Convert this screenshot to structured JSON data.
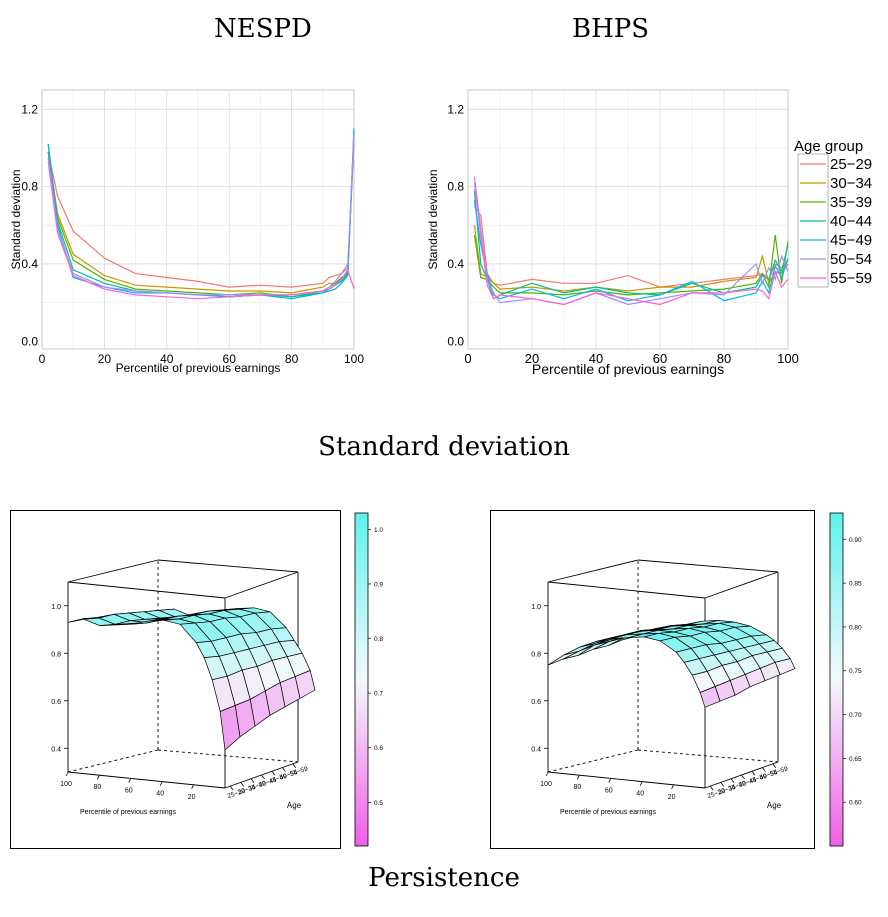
{
  "titles": {
    "nespd": "NESPD",
    "bhps": "BHPS",
    "sd_section": "Standard deviation",
    "persistence_section": "Persistence"
  },
  "colors": {
    "25-29": "#f8766d",
    "30-34": "#c49a00",
    "35-39": "#53b400",
    "40-44": "#00c094",
    "45-49": "#00b6eb",
    "50-54": "#a58aff",
    "55-59": "#fb61d7",
    "surface_high": "#5ff2ee",
    "surface_mid": "#f3f9fb",
    "surface_low": "#f15ee9"
  },
  "chart_data": [
    {
      "id": "nespd_sd",
      "type": "line",
      "title": "",
      "xlabel": "Percentile of previous earnings",
      "ylabel": "Standard deviation",
      "xlim": [
        0,
        100
      ],
      "ylim": [
        -0.04,
        1.3
      ],
      "xticks": [
        0,
        20,
        40,
        60,
        80,
        100
      ],
      "yticks": [
        0.0,
        0.4,
        0.8,
        1.2
      ],
      "ytick_labels": [
        "0.0",
        "0.4",
        "0.8",
        "1.2"
      ],
      "xtick_labels": [
        "0",
        "20",
        "40",
        "60",
        "80",
        "100"
      ],
      "grid": true,
      "x": [
        2,
        5,
        10,
        20,
        30,
        40,
        50,
        60,
        70,
        80,
        90,
        92,
        94,
        96,
        98,
        100
      ],
      "series": [
        {
          "key": "25-29",
          "values": [
            0.98,
            0.75,
            0.57,
            0.43,
            0.35,
            0.33,
            0.31,
            0.28,
            0.29,
            0.28,
            0.3,
            0.33,
            0.34,
            0.35,
            0.38,
            1.02
          ]
        },
        {
          "key": "30-34",
          "values": [
            0.98,
            0.66,
            0.45,
            0.34,
            0.29,
            0.28,
            0.27,
            0.26,
            0.26,
            0.25,
            0.28,
            0.3,
            0.3,
            0.32,
            0.36,
            1.06
          ]
        },
        {
          "key": "35-39",
          "values": [
            0.98,
            0.64,
            0.42,
            0.32,
            0.27,
            0.26,
            0.25,
            0.24,
            0.25,
            0.23,
            0.26,
            0.28,
            0.3,
            0.33,
            0.35,
            1.08
          ]
        },
        {
          "key": "40-44",
          "values": [
            1.02,
            0.62,
            0.37,
            0.3,
            0.26,
            0.25,
            0.24,
            0.23,
            0.24,
            0.22,
            0.25,
            0.27,
            0.29,
            0.31,
            0.35,
            1.1
          ]
        },
        {
          "key": "45-49",
          "values": [
            1.02,
            0.6,
            0.33,
            0.28,
            0.25,
            0.25,
            0.24,
            0.23,
            0.24,
            0.23,
            0.25,
            0.26,
            0.27,
            0.3,
            0.34,
            1.1
          ]
        },
        {
          "key": "50-54",
          "values": [
            0.95,
            0.58,
            0.35,
            0.28,
            0.26,
            0.25,
            0.24,
            0.24,
            0.24,
            0.24,
            0.26,
            0.28,
            0.31,
            0.35,
            0.4,
            1.07
          ]
        },
        {
          "key": "55-59",
          "values": [
            0.93,
            0.56,
            0.34,
            0.27,
            0.24,
            0.23,
            0.22,
            0.23,
            0.24,
            0.24,
            0.26,
            0.27,
            0.29,
            0.32,
            0.37,
            0.27
          ]
        }
      ]
    },
    {
      "id": "bhps_sd",
      "type": "line",
      "title": "",
      "xlabel": "Percentile of previous earnings",
      "ylabel": "Standard deviation",
      "xlim": [
        0,
        100
      ],
      "ylim": [
        -0.04,
        1.3
      ],
      "xticks": [
        0,
        20,
        40,
        60,
        80,
        100
      ],
      "yticks": [
        0.0,
        0.4,
        0.8,
        1.2
      ],
      "ytick_labels": [
        "0.0",
        "0.4",
        "0.8",
        "1.2"
      ],
      "xtick_labels": [
        "0",
        "20",
        "40",
        "60",
        "80",
        "100"
      ],
      "grid": true,
      "legend": {
        "title": "Age group",
        "position": "right",
        "entries": [
          "25−29",
          "30−34",
          "35−39",
          "40−44",
          "45−49",
          "50−54",
          "55−59"
        ]
      },
      "x": [
        2,
        4,
        6,
        8,
        10,
        20,
        30,
        40,
        50,
        60,
        70,
        80,
        90,
        92,
        94,
        96,
        98,
        100
      ],
      "series": [
        {
          "key": "25-29",
          "values": [
            0.7,
            0.65,
            0.35,
            0.3,
            0.29,
            0.32,
            0.3,
            0.3,
            0.34,
            0.28,
            0.3,
            0.32,
            0.34,
            0.35,
            0.32,
            0.4,
            0.38,
            0.42
          ]
        },
        {
          "key": "30-34",
          "values": [
            0.6,
            0.35,
            0.33,
            0.3,
            0.27,
            0.28,
            0.26,
            0.28,
            0.26,
            0.28,
            0.28,
            0.31,
            0.33,
            0.44,
            0.3,
            0.36,
            0.35,
            0.4
          ]
        },
        {
          "key": "35-39",
          "values": [
            0.55,
            0.33,
            0.32,
            0.28,
            0.25,
            0.25,
            0.24,
            0.26,
            0.24,
            0.25,
            0.26,
            0.27,
            0.3,
            0.35,
            0.28,
            0.55,
            0.3,
            0.52
          ]
        },
        {
          "key": "40-44",
          "values": [
            0.78,
            0.4,
            0.32,
            0.22,
            0.24,
            0.3,
            0.25,
            0.28,
            0.25,
            0.24,
            0.3,
            0.25,
            0.28,
            0.34,
            0.32,
            0.42,
            0.36,
            0.5
          ]
        },
        {
          "key": "45-49",
          "values": [
            0.73,
            0.5,
            0.35,
            0.24,
            0.22,
            0.27,
            0.22,
            0.27,
            0.21,
            0.24,
            0.31,
            0.21,
            0.25,
            0.31,
            0.25,
            0.39,
            0.33,
            0.43
          ]
        },
        {
          "key": "50-54",
          "values": [
            0.85,
            0.58,
            0.32,
            0.25,
            0.2,
            0.22,
            0.19,
            0.25,
            0.19,
            0.22,
            0.25,
            0.24,
            0.4,
            0.3,
            0.38,
            0.32,
            0.44,
            0.36
          ]
        },
        {
          "key": "55-59",
          "values": [
            0.82,
            0.55,
            0.29,
            0.22,
            0.24,
            0.22,
            0.19,
            0.25,
            0.22,
            0.19,
            0.25,
            0.25,
            0.27,
            0.26,
            0.22,
            0.36,
            0.28,
            0.32
          ]
        }
      ]
    },
    {
      "id": "nespd_persistence",
      "type": "surface",
      "title": "",
      "xlabel": "Percentile of previous earnings",
      "ylabel": "Age",
      "xtick_labels": [
        "100",
        "80",
        "60",
        "40",
        "20"
      ],
      "age_labels": [
        "25−29",
        "30−34",
        "35−39",
        "40−44",
        "45−49",
        "50−54",
        "55−59"
      ],
      "ztick_labels": [
        "0.4",
        "0.6",
        "0.8",
        "1.0"
      ],
      "zlim": [
        0.3,
        1.1
      ],
      "colorbar": {
        "min": 0.42,
        "max": 1.03,
        "ticks": [
          0.5,
          0.6,
          0.7,
          0.8,
          0.9,
          1.0
        ],
        "tick_labels": [
          "0.5",
          "0.6",
          "0.7",
          "0.8",
          "0.9",
          "1.0"
        ]
      },
      "percentiles": [
        100,
        90,
        80,
        70,
        60,
        50,
        40,
        30,
        20,
        15,
        10,
        5,
        2
      ],
      "surface": [
        [
          0.93,
          0.95,
          0.93,
          0.94,
          0.95,
          0.97,
          0.98,
          0.97,
          0.9,
          0.84,
          0.75,
          0.62,
          0.46
        ],
        [
          0.93,
          0.94,
          0.92,
          0.93,
          0.94,
          0.96,
          0.97,
          0.96,
          0.89,
          0.83,
          0.75,
          0.63,
          0.5
        ],
        [
          0.92,
          0.94,
          0.92,
          0.92,
          0.94,
          0.96,
          0.97,
          0.95,
          0.89,
          0.83,
          0.76,
          0.64,
          0.53
        ],
        [
          0.91,
          0.93,
          0.91,
          0.92,
          0.93,
          0.95,
          0.96,
          0.95,
          0.89,
          0.83,
          0.76,
          0.66,
          0.56
        ],
        [
          0.9,
          0.92,
          0.9,
          0.91,
          0.93,
          0.95,
          0.96,
          0.94,
          0.88,
          0.83,
          0.77,
          0.68,
          0.58
        ],
        [
          0.89,
          0.91,
          0.89,
          0.9,
          0.92,
          0.94,
          0.95,
          0.94,
          0.88,
          0.83,
          0.77,
          0.69,
          0.6
        ],
        [
          0.88,
          0.9,
          0.88,
          0.89,
          0.91,
          0.93,
          0.94,
          0.93,
          0.87,
          0.82,
          0.77,
          0.7,
          0.62
        ]
      ]
    },
    {
      "id": "bhps_persistence",
      "type": "surface",
      "title": "",
      "xlabel": "Percentile of previous earnings",
      "ylabel": "Age",
      "xtick_labels": [
        "100",
        "80",
        "60",
        "40",
        "20"
      ],
      "age_labels": [
        "25−29",
        "30−34",
        "35−39",
        "40−44",
        "45−49",
        "50−54",
        "55−59"
      ],
      "ztick_labels": [
        "0.4",
        "0.6",
        "0.8",
        "1.0"
      ],
      "zlim": [
        0.3,
        1.1
      ],
      "colorbar": {
        "min": 0.55,
        "max": 0.93,
        "ticks": [
          0.6,
          0.65,
          0.7,
          0.75,
          0.8,
          0.85,
          0.9
        ],
        "tick_labels": [
          "0.60",
          "0.65",
          "0.70",
          "0.75",
          "0.80",
          "0.85",
          "0.90"
        ]
      },
      "percentiles": [
        100,
        90,
        80,
        70,
        60,
        50,
        40,
        30,
        20,
        15,
        10,
        5,
        2
      ],
      "surface": [
        [
          0.75,
          0.8,
          0.84,
          0.87,
          0.89,
          0.9,
          0.91,
          0.9,
          0.86,
          0.82,
          0.77,
          0.7,
          0.64
        ],
        [
          0.76,
          0.8,
          0.84,
          0.87,
          0.89,
          0.9,
          0.91,
          0.9,
          0.86,
          0.82,
          0.77,
          0.71,
          0.65
        ],
        [
          0.76,
          0.81,
          0.84,
          0.87,
          0.89,
          0.9,
          0.9,
          0.89,
          0.86,
          0.82,
          0.78,
          0.72,
          0.66
        ],
        [
          0.77,
          0.81,
          0.84,
          0.87,
          0.88,
          0.89,
          0.9,
          0.89,
          0.85,
          0.82,
          0.78,
          0.73,
          0.68
        ],
        [
          0.77,
          0.81,
          0.84,
          0.86,
          0.88,
          0.89,
          0.89,
          0.88,
          0.85,
          0.82,
          0.79,
          0.74,
          0.69
        ],
        [
          0.78,
          0.81,
          0.84,
          0.86,
          0.87,
          0.88,
          0.89,
          0.88,
          0.85,
          0.82,
          0.79,
          0.75,
          0.7
        ],
        [
          0.78,
          0.81,
          0.83,
          0.85,
          0.87,
          0.88,
          0.88,
          0.87,
          0.84,
          0.82,
          0.79,
          0.75,
          0.71
        ]
      ]
    }
  ]
}
